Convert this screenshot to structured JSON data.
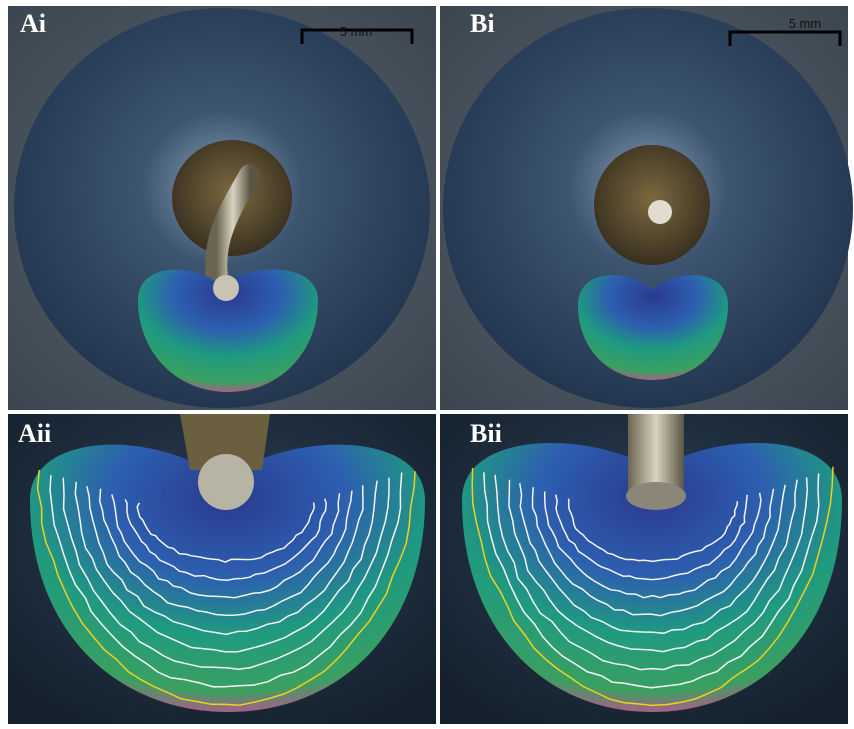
{
  "panels": [
    {
      "label": "Ai",
      "scale_bar": "5 mm"
    },
    {
      "label": "Bi",
      "scale_bar": "5 mm"
    },
    {
      "label": "Aii"
    },
    {
      "label": "Bii"
    }
  ]
}
